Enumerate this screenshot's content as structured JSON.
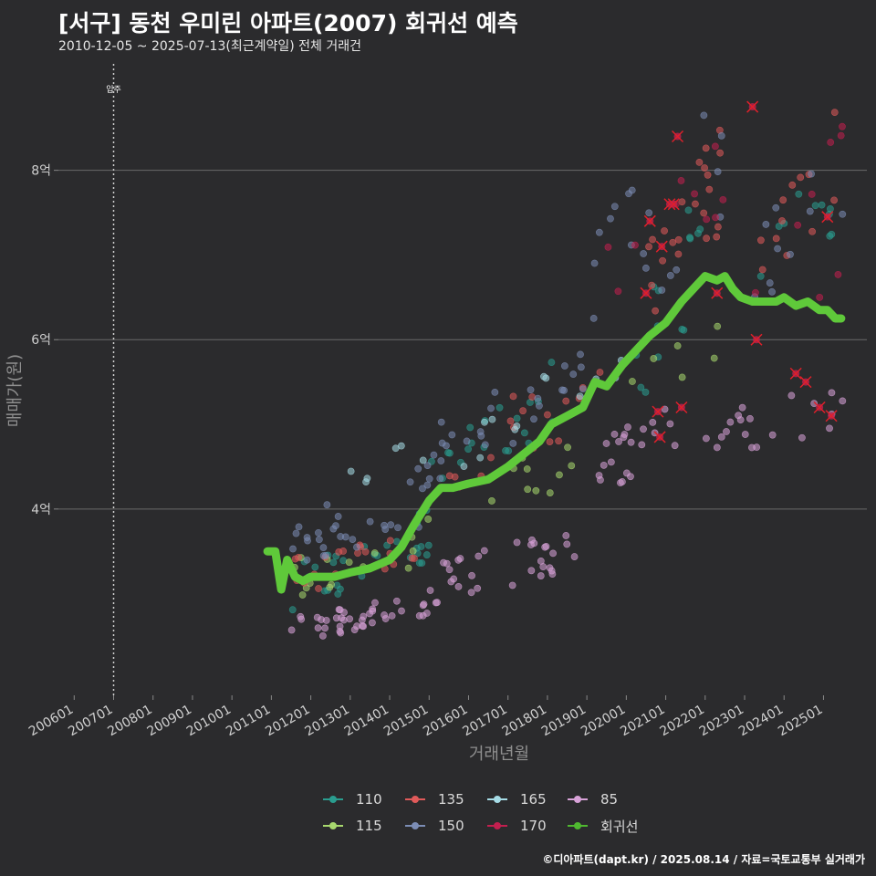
{
  "header": {
    "title": "[서구] 동천 우미린 아파트(2007) 회귀선 예측",
    "subtitle": "2010-12-05 ~ 2025-07-13(최근계약일) 전체 거래건"
  },
  "credit": "©디아파트(dapt.kr) / 2025.08.14 / 자료=국토교통부 실거래가",
  "chart_data": {
    "type": "scatter",
    "xlabel": "거래년월",
    "ylabel": "매매가(원)",
    "x_tick_labels": [
      "200601",
      "200701",
      "200801",
      "200901",
      "201001",
      "201101",
      "201201",
      "201301",
      "201401",
      "201501",
      "201601",
      "201701",
      "201801",
      "201901",
      "202001",
      "202101",
      "202201",
      "202301",
      "202401",
      "202501"
    ],
    "x_range": [
      2005.6,
      2026.1
    ],
    "y_ticks": [
      {
        "value": 4,
        "label": "4억"
      },
      {
        "value": 6,
        "label": "6억"
      },
      {
        "value": 8,
        "label": "8억"
      }
    ],
    "y_range": [
      1.8,
      9.3
    ],
    "move_in": {
      "x": 2007.0,
      "label": "입주"
    },
    "series": [
      {
        "name": "110",
        "color": "#2a9d8f",
        "clusters": [
          {
            "x0": 2011.5,
            "x1": 2015.0,
            "y0": 2.8,
            "y1": 4.0,
            "n": 32
          },
          {
            "x0": 2015.0,
            "x1": 2018.5,
            "y0": 4.2,
            "y1": 5.8,
            "n": 20
          },
          {
            "x0": 2020.2,
            "x1": 2022.0,
            "y0": 5.2,
            "y1": 7.8,
            "n": 14
          },
          {
            "x0": 2022.5,
            "x1": 2025.5,
            "y0": 6.2,
            "y1": 8.1,
            "n": 10
          }
        ]
      },
      {
        "name": "115",
        "color": "#a8d86e",
        "clusters": [
          {
            "x0": 2011.5,
            "x1": 2015.0,
            "y0": 2.9,
            "y1": 3.9,
            "n": 16
          },
          {
            "x0": 2015.5,
            "x1": 2019.0,
            "y0": 3.8,
            "y1": 4.9,
            "n": 10
          },
          {
            "x0": 2020.0,
            "x1": 2022.5,
            "y0": 5.0,
            "y1": 6.5,
            "n": 6
          }
        ]
      },
      {
        "name": "135",
        "color": "#e05a5a",
        "clusters": [
          {
            "x0": 2011.5,
            "x1": 2015.0,
            "y0": 3.0,
            "y1": 3.8,
            "n": 20
          },
          {
            "x0": 2015.5,
            "x1": 2019.5,
            "y0": 4.2,
            "y1": 6.0,
            "n": 18
          },
          {
            "x0": 2020.5,
            "x1": 2022.5,
            "y0": 6.2,
            "y1": 8.5,
            "n": 22
          },
          {
            "x0": 2023.0,
            "x1": 2025.6,
            "y0": 6.5,
            "y1": 8.8,
            "n": 12
          }
        ]
      },
      {
        "name": "150",
        "color": "#7c8db5",
        "clusters": [
          {
            "x0": 2011.5,
            "x1": 2015.0,
            "y0": 3.1,
            "y1": 4.6,
            "n": 30
          },
          {
            "x0": 2015.0,
            "x1": 2019.0,
            "y0": 4.3,
            "y1": 6.0,
            "n": 26
          },
          {
            "x0": 2019.0,
            "x1": 2022.5,
            "y0": 5.5,
            "y1": 8.9,
            "n": 18
          },
          {
            "x0": 2023.0,
            "x1": 2025.6,
            "y0": 6.0,
            "y1": 8.6,
            "n": 10
          }
        ]
      },
      {
        "name": "165",
        "color": "#a6dce6",
        "clusters": [
          {
            "x0": 2013.0,
            "x1": 2017.5,
            "y0": 4.0,
            "y1": 5.2,
            "n": 12
          },
          {
            "x0": 2017.5,
            "x1": 2020.0,
            "y0": 5.0,
            "y1": 6.0,
            "n": 6
          }
        ]
      },
      {
        "name": "170",
        "color": "#c21f4f",
        "clusters": [
          {
            "x0": 2019.5,
            "x1": 2022.5,
            "y0": 6.2,
            "y1": 8.4,
            "n": 10
          },
          {
            "x0": 2023.0,
            "x1": 2025.6,
            "y0": 5.0,
            "y1": 8.7,
            "n": 8
          }
        ]
      },
      {
        "name": "85",
        "color": "#d8a2d8",
        "clusters": [
          {
            "x0": 2011.5,
            "x1": 2015.0,
            "y0": 2.45,
            "y1": 3.0,
            "n": 40
          },
          {
            "x0": 2015.0,
            "x1": 2018.8,
            "y0": 2.8,
            "y1": 3.9,
            "n": 34
          },
          {
            "x0": 2018.8,
            "x1": 2021.5,
            "y0": 4.1,
            "y1": 5.3,
            "n": 22
          },
          {
            "x0": 2021.5,
            "x1": 2025.6,
            "y0": 4.5,
            "y1": 5.5,
            "n": 20
          }
        ]
      }
    ],
    "regression": {
      "name": "회귀선",
      "color": "#5fc93a",
      "x": [
        2010.9,
        2011.1,
        2011.25,
        2011.4,
        2011.6,
        2011.8,
        2012.0,
        2012.3,
        2012.6,
        2013.0,
        2013.5,
        2014.0,
        2014.3,
        2014.6,
        2015.0,
        2015.3,
        2015.6,
        2016.0,
        2016.5,
        2017.0,
        2017.4,
        2017.8,
        2018.1,
        2018.5,
        2018.9,
        2019.2,
        2019.5,
        2019.9,
        2020.2,
        2020.6,
        2021.0,
        2021.4,
        2021.7,
        2022.0,
        2022.3,
        2022.5,
        2022.7,
        2022.9,
        2023.2,
        2023.5,
        2023.8,
        2024.0,
        2024.3,
        2024.6,
        2024.9,
        2025.1,
        2025.3,
        2025.45
      ],
      "y": [
        3.5,
        3.5,
        3.05,
        3.4,
        3.2,
        3.15,
        3.2,
        3.2,
        3.2,
        3.25,
        3.3,
        3.4,
        3.55,
        3.8,
        4.1,
        4.25,
        4.25,
        4.3,
        4.35,
        4.5,
        4.65,
        4.8,
        5.0,
        5.1,
        5.2,
        5.5,
        5.45,
        5.7,
        5.85,
        6.05,
        6.2,
        6.45,
        6.6,
        6.75,
        6.7,
        6.75,
        6.6,
        6.5,
        6.45,
        6.45,
        6.45,
        6.5,
        6.4,
        6.45,
        6.35,
        6.35,
        6.25,
        6.25
      ]
    },
    "highlighted_points": [
      {
        "x": 2020.5,
        "y": 6.55
      },
      {
        "x": 2020.6,
        "y": 7.4
      },
      {
        "x": 2020.8,
        "y": 5.15
      },
      {
        "x": 2020.85,
        "y": 4.85
      },
      {
        "x": 2020.9,
        "y": 7.1
      },
      {
        "x": 2021.1,
        "y": 7.6
      },
      {
        "x": 2021.2,
        "y": 7.6
      },
      {
        "x": 2021.3,
        "y": 8.4
      },
      {
        "x": 2021.4,
        "y": 5.2
      },
      {
        "x": 2022.3,
        "y": 6.55
      },
      {
        "x": 2023.2,
        "y": 8.75
      },
      {
        "x": 2023.3,
        "y": 6.0
      },
      {
        "x": 2024.3,
        "y": 5.6
      },
      {
        "x": 2024.55,
        "y": 5.5
      },
      {
        "x": 2024.9,
        "y": 5.2
      },
      {
        "x": 2025.1,
        "y": 7.45
      },
      {
        "x": 2025.2,
        "y": 5.1
      }
    ],
    "legend": {
      "placement": "bottom",
      "items": [
        "110",
        "135",
        "165",
        "85",
        "115",
        "150",
        "170",
        "회귀선"
      ]
    }
  }
}
